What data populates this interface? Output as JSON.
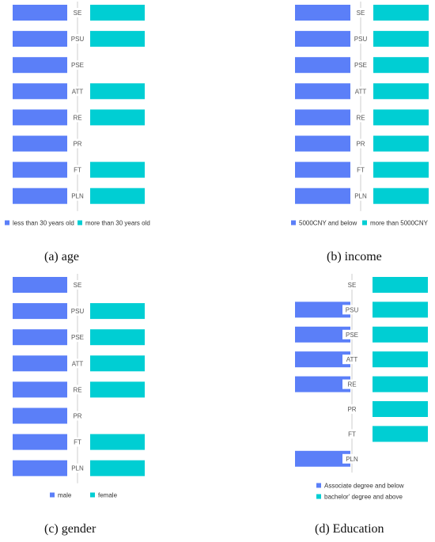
{
  "colors": {
    "left": "#5B7FF8",
    "right": "#00CED3",
    "axis": "#cccccc"
  },
  "chart_data": [
    {
      "type": "bar",
      "categories": [
        "SE",
        "PSU",
        "PSE",
        "ATT",
        "RE",
        "PR",
        "FT",
        "PLN"
      ],
      "series": [
        {
          "name": "less than 30 years old",
          "values": [
            1,
            1,
            1,
            1,
            1,
            1,
            1,
            1
          ]
        },
        {
          "name": "more than 30 years old",
          "values": [
            1,
            1,
            0,
            1,
            1,
            0,
            1,
            1
          ]
        }
      ],
      "caption": "(a) age",
      "legend_position": "bottom-left"
    },
    {
      "type": "bar",
      "categories": [
        "SE",
        "PSU",
        "PSE",
        "ATT",
        "RE",
        "PR",
        "FT",
        "PLN"
      ],
      "series": [
        {
          "name": "5000CNY and below",
          "values": [
            1,
            1,
            1,
            1,
            1,
            1,
            1,
            1
          ]
        },
        {
          "name": "more than 5000CNY",
          "values": [
            1,
            1,
            1,
            1,
            1,
            1,
            1,
            1
          ]
        }
      ],
      "caption": "(b) income",
      "legend_position": "bottom-right"
    },
    {
      "type": "bar",
      "categories": [
        "SE",
        "PSU",
        "PSE",
        "ATT",
        "RE",
        "PR",
        "FT",
        "PLN"
      ],
      "series": [
        {
          "name": "male",
          "values": [
            1,
            1,
            1,
            1,
            1,
            1,
            1,
            1
          ]
        },
        {
          "name": "female",
          "values": [
            0,
            1,
            1,
            1,
            1,
            0,
            1,
            1
          ]
        }
      ],
      "caption": "(c) gender",
      "legend_position": "bottom-center"
    },
    {
      "type": "bar",
      "categories": [
        "SE",
        "PSU",
        "PSE",
        "ATT",
        "RE",
        "PR",
        "FT",
        "PLN"
      ],
      "series": [
        {
          "name": "Associate degree and below",
          "values": [
            0,
            1,
            1,
            1,
            1,
            0,
            0,
            1
          ]
        },
        {
          "name": "bachelor' degree and above",
          "values": [
            1,
            1,
            1,
            1,
            1,
            1,
            1,
            0
          ]
        }
      ],
      "caption": "(d) Education",
      "legend_position": "bottom-stacked"
    }
  ]
}
